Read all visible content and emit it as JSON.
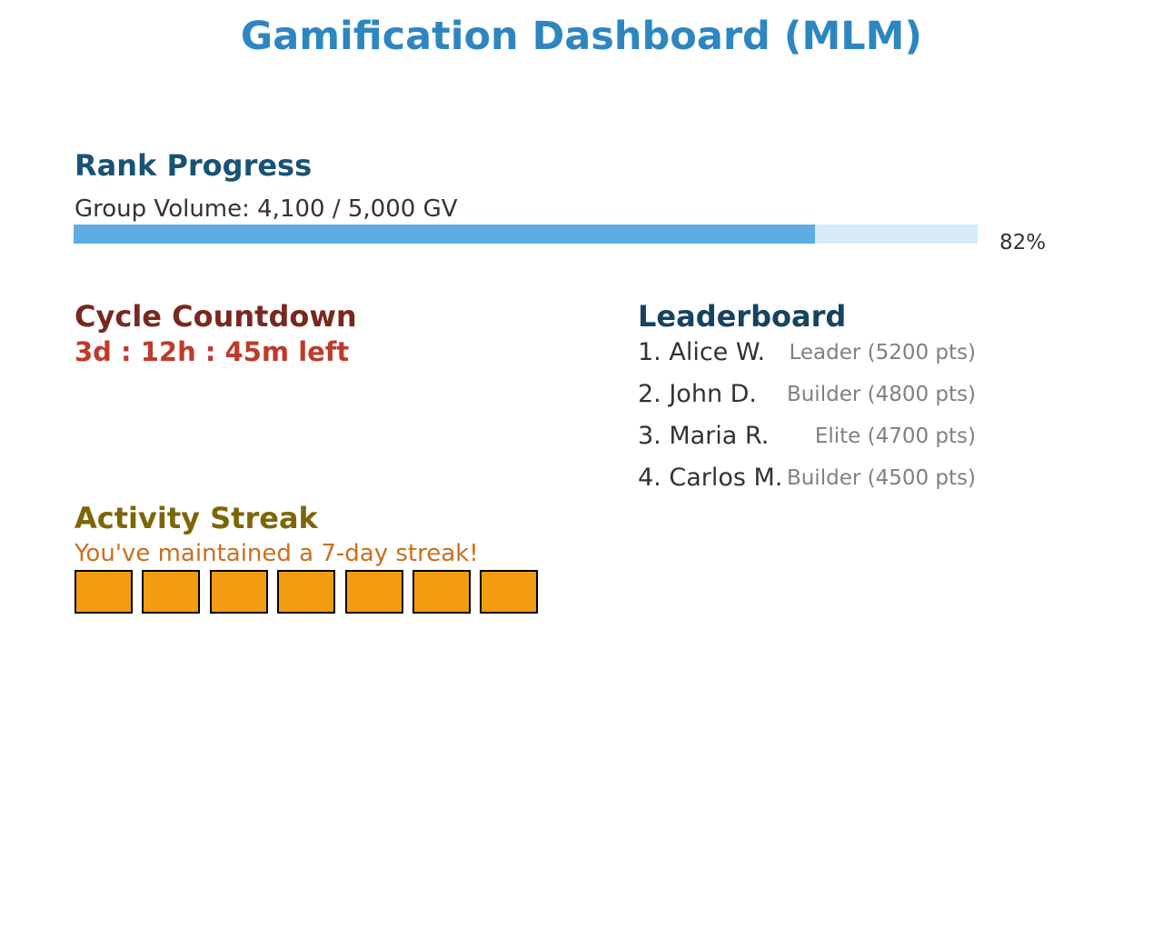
{
  "title": "Gamification Dashboard (MLM)",
  "colors": {
    "title": "#2e86c1",
    "rank_heading": "#1a5276",
    "body_text": "#333333",
    "progress_fill": "#5dade2",
    "progress_track": "#d6eaf8",
    "countdown_heading": "#78281f",
    "countdown_value": "#c0392b",
    "leaderboard_heading": "#154360",
    "leaderboard_detail": "#808080",
    "streak_heading": "#7d6608",
    "streak_message": "#ca6f1e",
    "streak_box": "#f39c12"
  },
  "rank_progress": {
    "heading": "Rank Progress",
    "group_volume_text": "Group Volume: 4,100 / 5,000 GV",
    "progress_fraction": 0.82,
    "percent_label": "82%"
  },
  "cycle_countdown": {
    "heading": "Cycle Countdown",
    "value": "3d : 12h : 45m left"
  },
  "leaderboard": {
    "heading": "Leaderboard",
    "entries": [
      {
        "name": "1. Alice W.",
        "detail": "Leader (5200 pts)"
      },
      {
        "name": "2. John D.",
        "detail": "Builder (4800 pts)"
      },
      {
        "name": "3. Maria R.",
        "detail": "Elite (4700 pts)"
      },
      {
        "name": "4. Carlos M.",
        "detail": "Builder (4500 pts)"
      }
    ]
  },
  "activity_streak": {
    "heading": "Activity Streak",
    "message": "You've maintained a 7-day streak!",
    "days": 7
  }
}
